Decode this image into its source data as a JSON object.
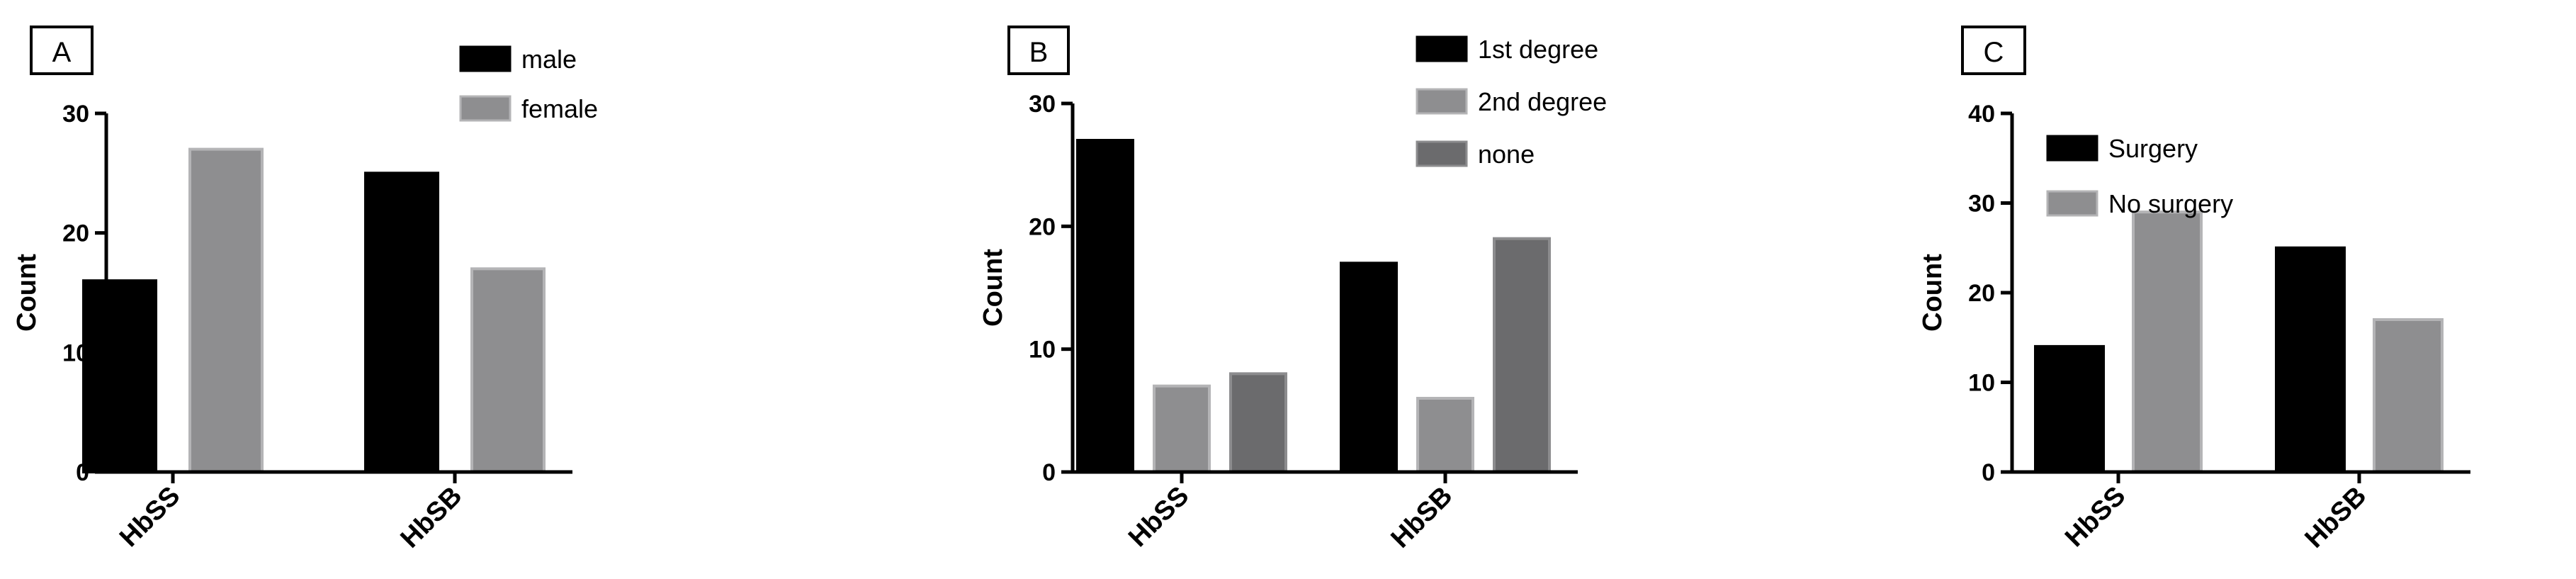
{
  "colors": {
    "series1": "#000000",
    "series2": "#8e8e90",
    "series3": "#6b6b6d",
    "series2_edge": "#b4b4b6",
    "series3_edge": "#8c8c8e"
  },
  "chart_data": [
    {
      "type": "bar",
      "panel_label": "A",
      "categories": [
        "HbSS",
        "HbSB"
      ],
      "series": [
        {
          "name": "male",
          "values": [
            16,
            25
          ]
        },
        {
          "name": "female",
          "values": [
            27,
            17
          ]
        }
      ],
      "ylabel": "Count",
      "ylim": [
        0,
        30
      ],
      "yticks": [
        0,
        10,
        20,
        30
      ],
      "grid": false,
      "legend_position": "top-right"
    },
    {
      "type": "bar",
      "panel_label": "B",
      "categories": [
        "HbSS",
        "HbSB"
      ],
      "series": [
        {
          "name": "1st degree",
          "values": [
            27,
            17
          ]
        },
        {
          "name": "2nd degree",
          "values": [
            7,
            6
          ]
        },
        {
          "name": "none",
          "values": [
            8,
            19
          ]
        }
      ],
      "ylabel": "Count",
      "ylim": [
        0,
        30
      ],
      "yticks": [
        0,
        10,
        20,
        30
      ],
      "grid": false,
      "legend_position": "top-right"
    },
    {
      "type": "bar",
      "panel_label": "C",
      "categories": [
        "HbSS",
        "HbSB"
      ],
      "series": [
        {
          "name": "Surgery",
          "values": [
            14,
            25
          ]
        },
        {
          "name": "No surgery",
          "values": [
            29,
            17
          ]
        }
      ],
      "ylabel": "Count",
      "ylim": [
        0,
        40
      ],
      "yticks": [
        0,
        10,
        20,
        30,
        40
      ],
      "grid": false,
      "legend_position": "top-right"
    }
  ]
}
